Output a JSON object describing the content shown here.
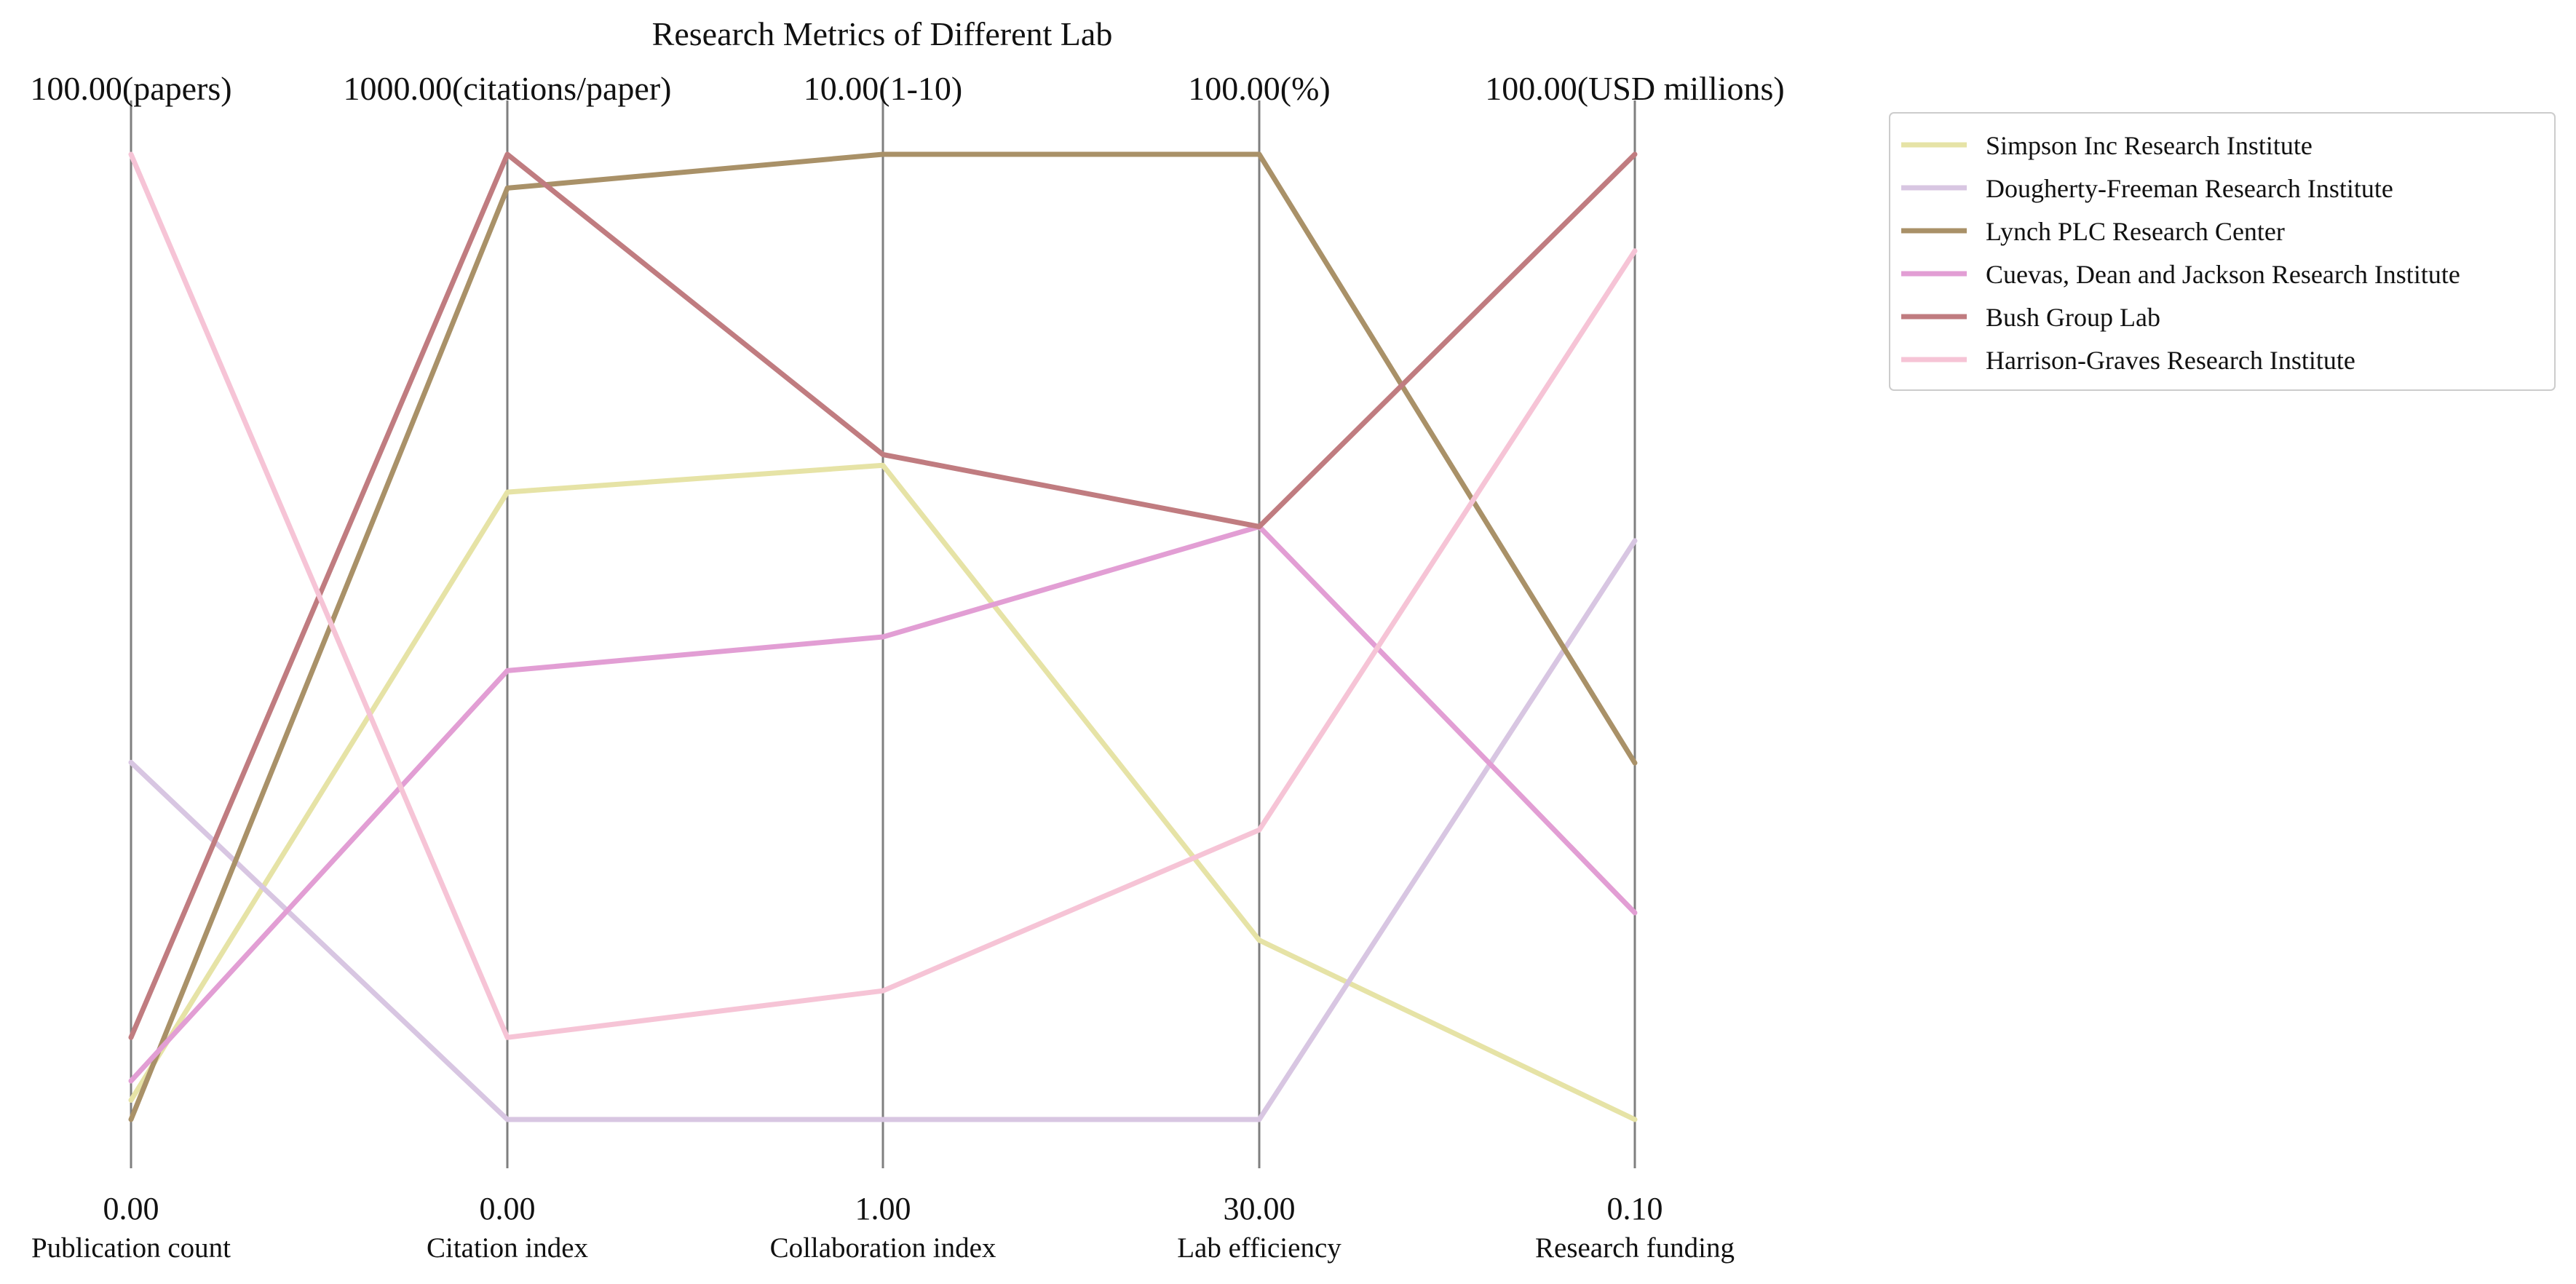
{
  "chart_data": {
    "type": "parallel_coordinates",
    "title": "Research Metrics of Different Lab",
    "axes": [
      {
        "name": "Publication count",
        "min_label": "0.00",
        "max_label": "100.00(papers)",
        "min": 0,
        "max": 100,
        "unit": "papers"
      },
      {
        "name": "Citation index",
        "min_label": "0.00",
        "max_label": "1000.00(citations/paper)",
        "min": 0,
        "max": 1000,
        "unit": "citations/paper"
      },
      {
        "name": "Collaboration index",
        "min_label": "1.00",
        "max_label": "10.00(1-10)",
        "min": 1,
        "max": 10,
        "unit": "1-10"
      },
      {
        "name": "Lab efficiency",
        "min_label": "30.00",
        "max_label": "100.00(%)",
        "min": 30,
        "max": 100,
        "unit": "%"
      },
      {
        "name": "Research funding",
        "min_label": "0.10",
        "max_label": "100.00(USD millions)",
        "min": 0.1,
        "max": 100,
        "unit": "USD millions"
      }
    ],
    "series": [
      {
        "name": "Simpson Inc  Research Institute",
        "color": "#e6e3a6",
        "values": [
          2,
          650,
          7.1,
          43,
          0.1
        ]
      },
      {
        "name": "Dougherty-Freeman  Research Institute",
        "color": "#d8c6e2",
        "values": [
          37,
          0,
          1,
          30,
          60
        ]
      },
      {
        "name": "Lynch PLC  Research Center",
        "color": "#a99168",
        "values": [
          0,
          965,
          10,
          100,
          37
        ]
      },
      {
        "name": "Cuevas, Dean and Jackson  Research Institute",
        "color": "#e29ed4",
        "values": [
          4,
          465,
          5.5,
          73,
          21.5
        ]
      },
      {
        "name": "Bush Group  Lab",
        "color": "#c07c80",
        "values": [
          8.5,
          1000,
          7.2,
          73,
          100
        ]
      },
      {
        "name": "Harrison-Graves  Research Institute",
        "color": "#f6c4d6",
        "values": [
          100,
          85,
          2.2,
          51,
          90
        ]
      }
    ],
    "legend": {
      "position": "top-right"
    },
    "grid": false
  }
}
